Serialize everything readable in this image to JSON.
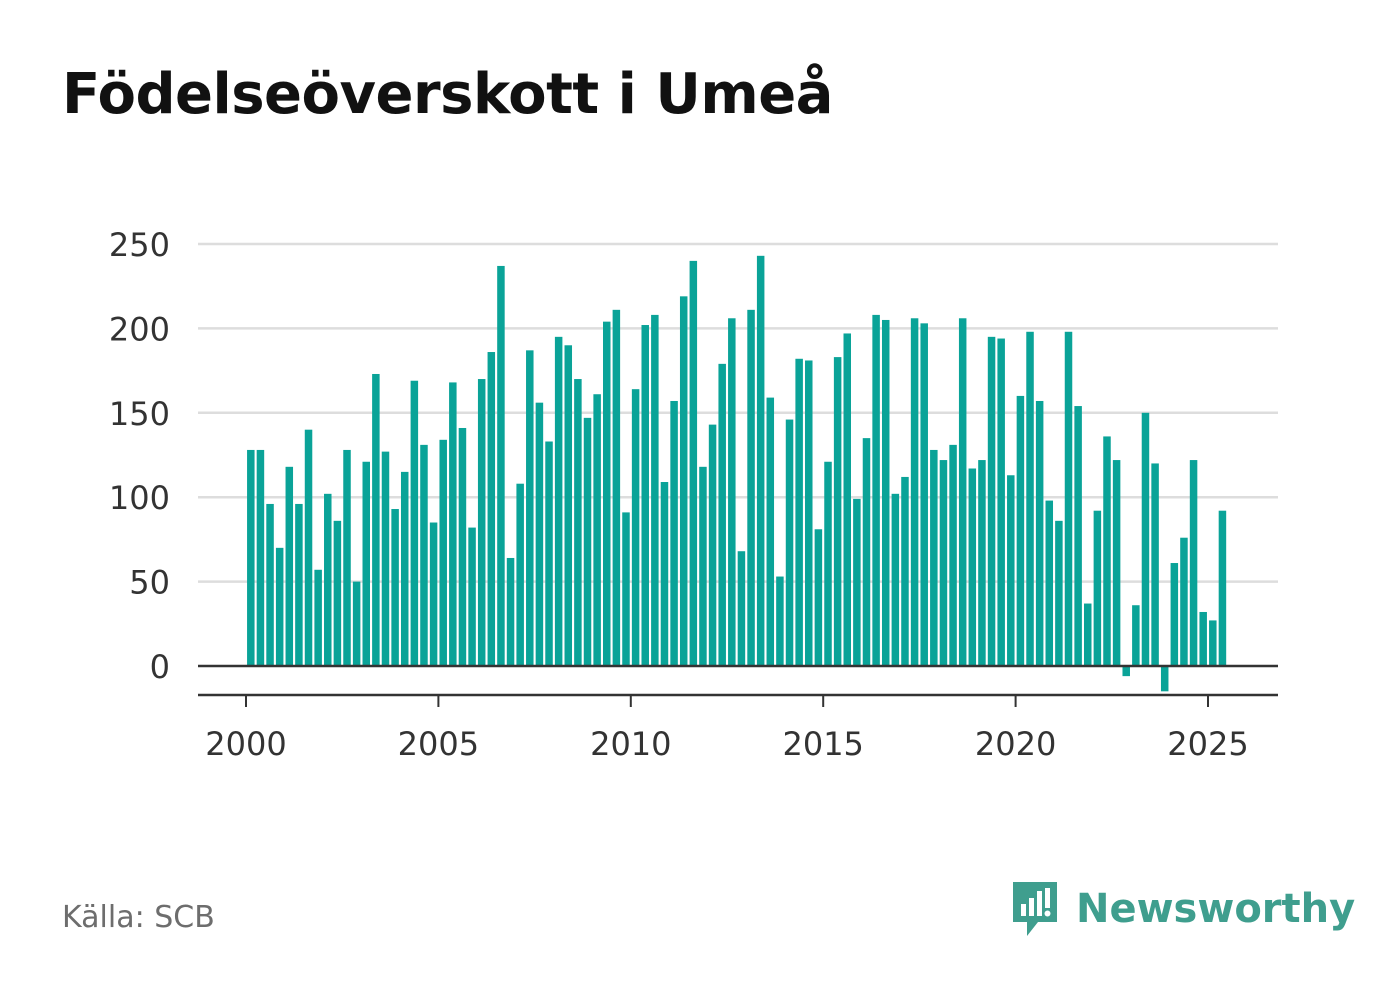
{
  "title": "Födelseöverskott i Umeå",
  "source": "Källa: SCB",
  "brand": {
    "name": "Newsworthy",
    "icon": "newsworthy-logo-icon",
    "color": "#3f9e8e"
  },
  "colors": {
    "bar": "#0aa398",
    "grid": "#dddddd",
    "axis": "#333333",
    "tick_text": "#333333"
  },
  "chart_data": {
    "type": "bar",
    "title": "Födelseöverskott i Umeå",
    "xlabel": "",
    "ylabel": "",
    "ylim": [
      -20,
      260
    ],
    "xlim": [
      1999.75,
      2026.5
    ],
    "grid": true,
    "legend": "none",
    "y_ticks": [
      0,
      50,
      100,
      150,
      200,
      250
    ],
    "x_ticks": [
      2000,
      2005,
      2010,
      2015,
      2020,
      2025
    ],
    "x_tick_labels": [
      "2000",
      "2005",
      "2010",
      "2015",
      "2020",
      "2025"
    ],
    "y_tick_labels": [
      "0",
      "50",
      "100",
      "150",
      "200",
      "250"
    ],
    "bar_interval": "quarter",
    "start": "2000 Q1",
    "series": [
      {
        "values": [
          128,
          128,
          96,
          70,
          118,
          96,
          140,
          57,
          102,
          86,
          128,
          50,
          121,
          173,
          127,
          93,
          115,
          169,
          131,
          85,
          134,
          168,
          141,
          82,
          170,
          186,
          237,
          64,
          108,
          187,
          156,
          133,
          195,
          190,
          170,
          147,
          161,
          204,
          211,
          91,
          164,
          202,
          208,
          109,
          157,
          219,
          240,
          118,
          143,
          179,
          206,
          68,
          211,
          243,
          159,
          53,
          146,
          182,
          181,
          81,
          121,
          183,
          197,
          99,
          135,
          208,
          205,
          102,
          112,
          206,
          203,
          128,
          122,
          131,
          206,
          117,
          122,
          195,
          194,
          113,
          160,
          198,
          157,
          98,
          86,
          198,
          154,
          37,
          92,
          136,
          122,
          -6,
          36,
          150,
          120,
          -15,
          61,
          76,
          122,
          32,
          27,
          92
        ]
      }
    ]
  }
}
